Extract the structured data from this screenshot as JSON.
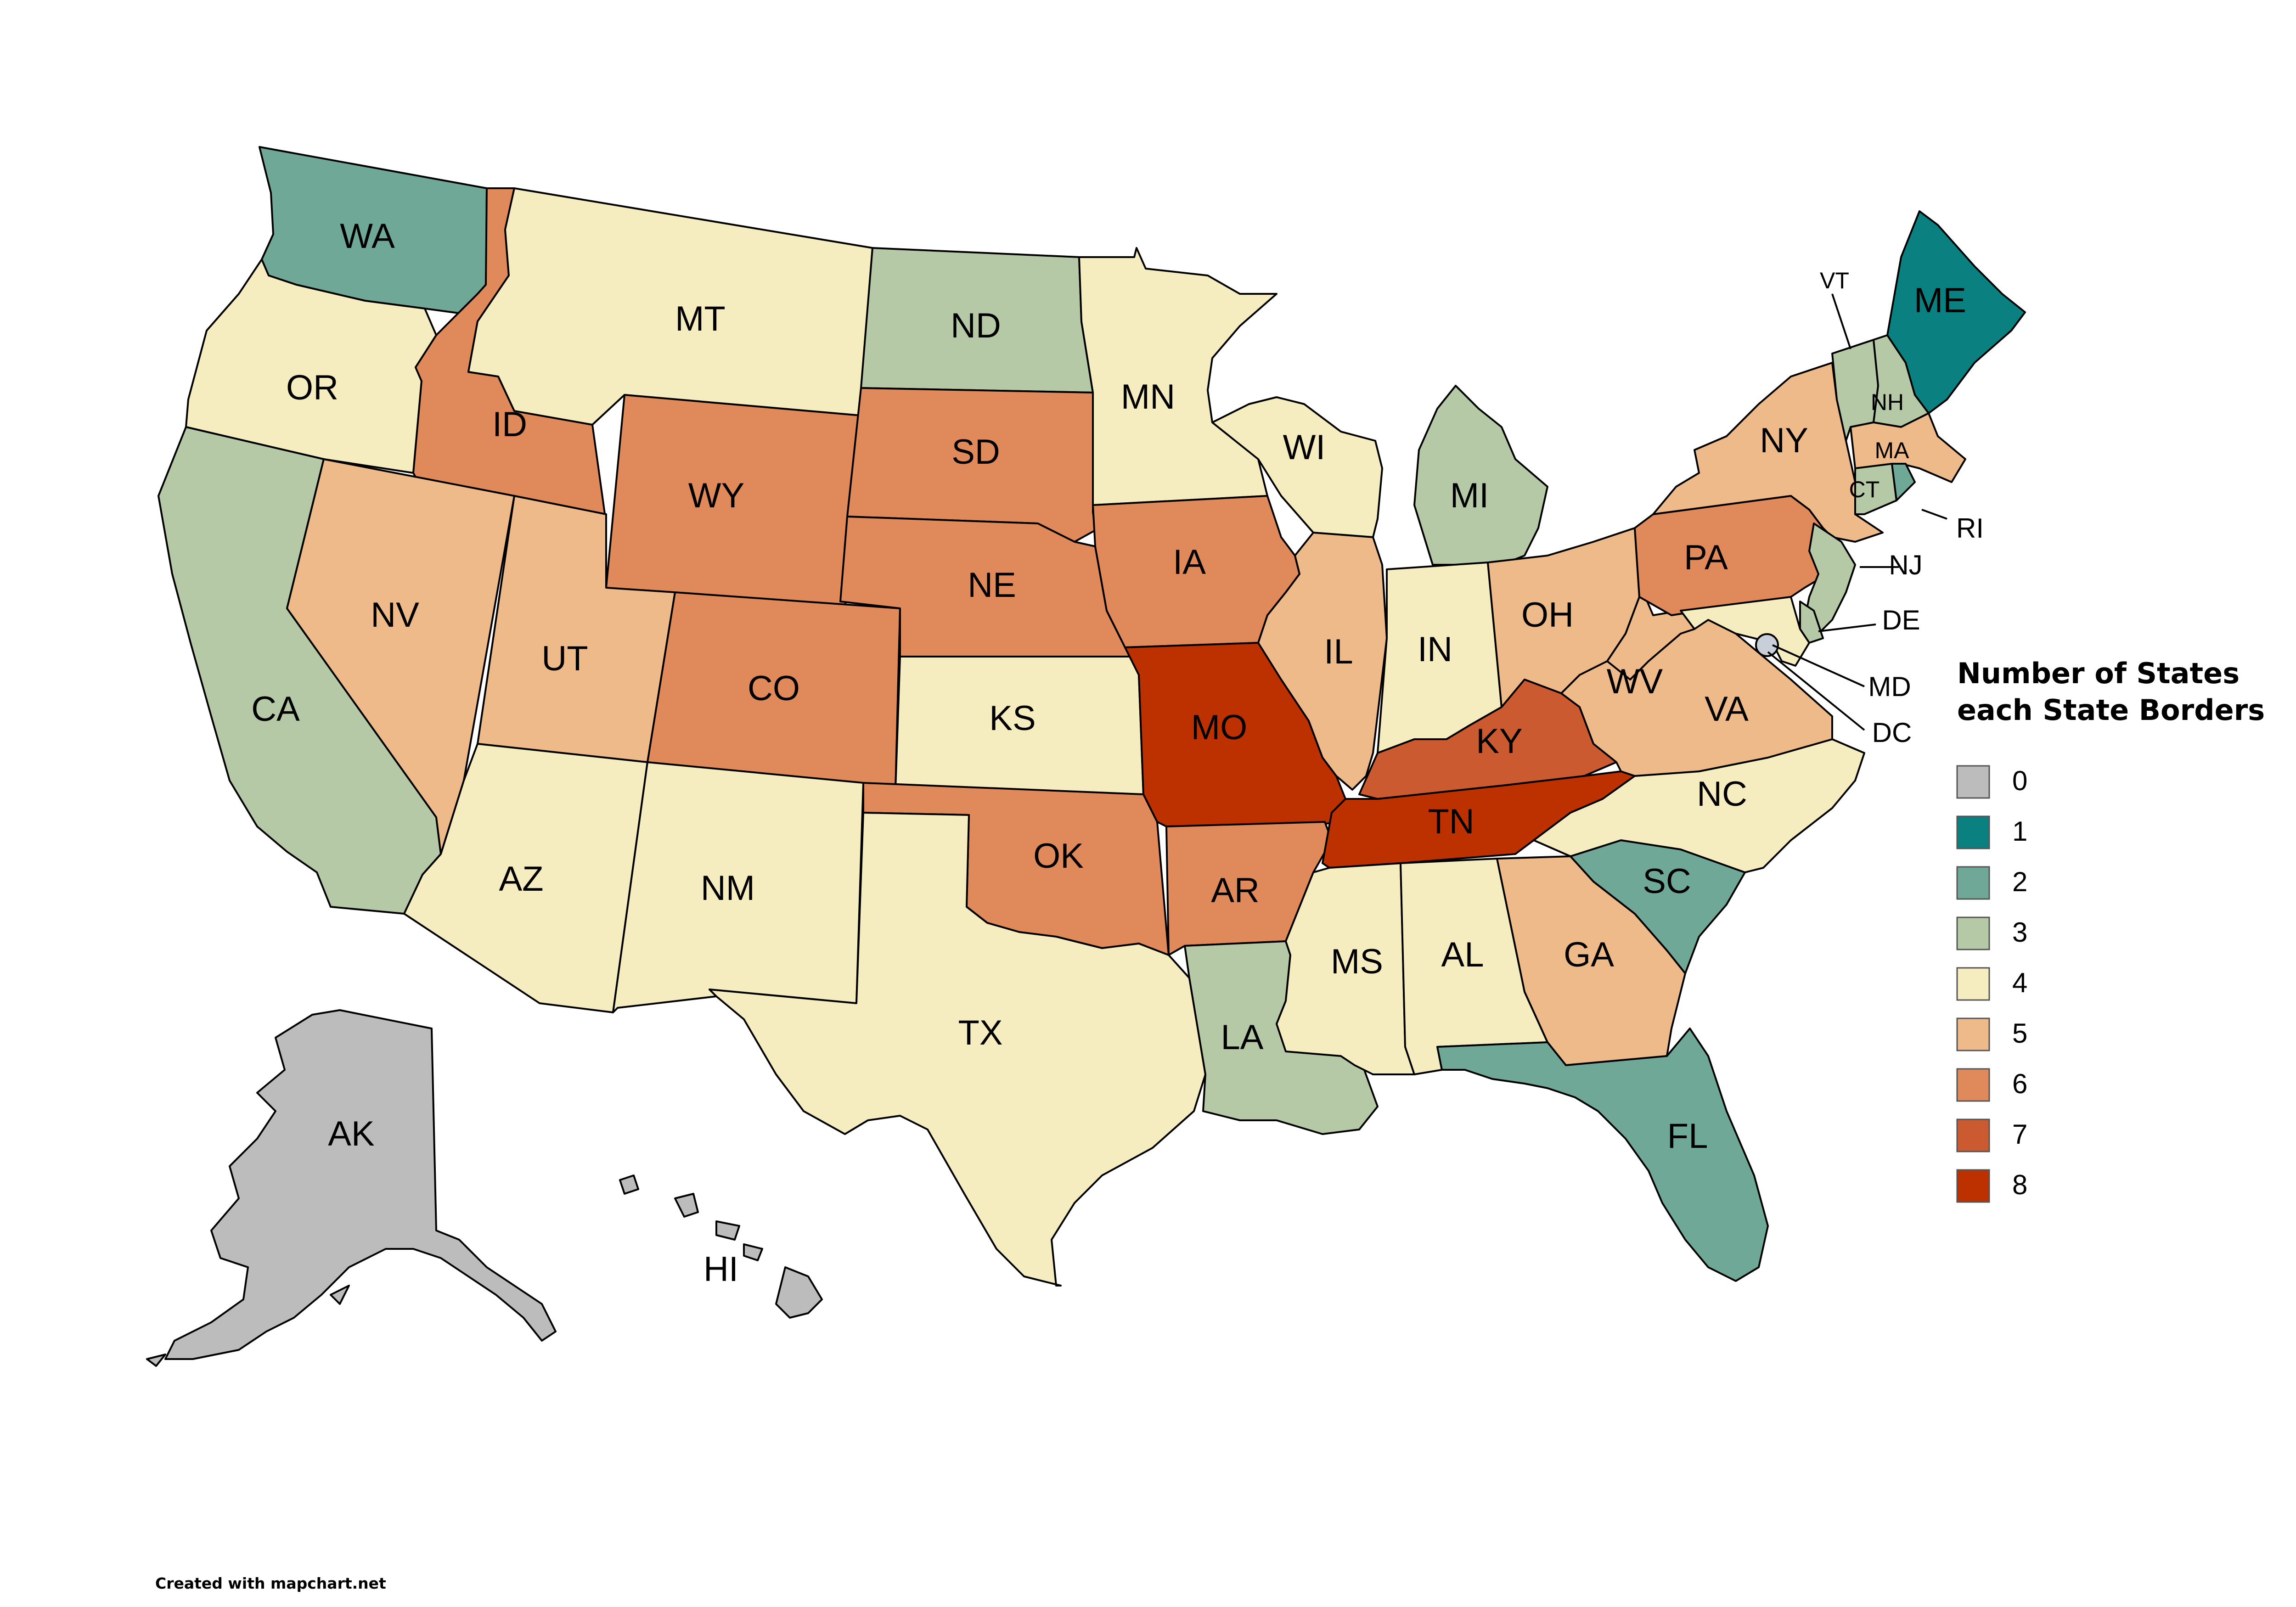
{
  "legend": {
    "title_line1": "Number of States",
    "title_line2": "each State Borders",
    "items": [
      {
        "label": "0",
        "color": "#bcbcbc"
      },
      {
        "label": "1",
        "color": "#0b8080"
      },
      {
        "label": "2",
        "color": "#70a898"
      },
      {
        "label": "3",
        "color": "#b5c9a6"
      },
      {
        "label": "4",
        "color": "#f5edbf"
      },
      {
        "label": "5",
        "color": "#eeba8a"
      },
      {
        "label": "6",
        "color": "#e0895a"
      },
      {
        "label": "7",
        "color": "#cc5a30"
      },
      {
        "label": "8",
        "color": "#bd3000"
      }
    ]
  },
  "credit": "Created with mapchart.net",
  "states": [
    {
      "abbr": "WA",
      "value": 2
    },
    {
      "abbr": "OR",
      "value": 4
    },
    {
      "abbr": "CA",
      "value": 3
    },
    {
      "abbr": "ID",
      "value": 6
    },
    {
      "abbr": "NV",
      "value": 5
    },
    {
      "abbr": "MT",
      "value": 4
    },
    {
      "abbr": "WY",
      "value": 6
    },
    {
      "abbr": "UT",
      "value": 5
    },
    {
      "abbr": "AZ",
      "value": 4
    },
    {
      "abbr": "CO",
      "value": 6
    },
    {
      "abbr": "NM",
      "value": 4
    },
    {
      "abbr": "ND",
      "value": 3
    },
    {
      "abbr": "SD",
      "value": 6
    },
    {
      "abbr": "NE",
      "value": 6
    },
    {
      "abbr": "KS",
      "value": 4
    },
    {
      "abbr": "OK",
      "value": 6
    },
    {
      "abbr": "TX",
      "value": 4
    },
    {
      "abbr": "MN",
      "value": 4
    },
    {
      "abbr": "IA",
      "value": 6
    },
    {
      "abbr": "MO",
      "value": 8
    },
    {
      "abbr": "AR",
      "value": 6
    },
    {
      "abbr": "LA",
      "value": 3
    },
    {
      "abbr": "WI",
      "value": 4
    },
    {
      "abbr": "IL",
      "value": 5
    },
    {
      "abbr": "MI",
      "value": 3
    },
    {
      "abbr": "IN",
      "value": 4
    },
    {
      "abbr": "OH",
      "value": 5
    },
    {
      "abbr": "KY",
      "value": 7
    },
    {
      "abbr": "TN",
      "value": 8
    },
    {
      "abbr": "MS",
      "value": 4
    },
    {
      "abbr": "AL",
      "value": 4
    },
    {
      "abbr": "GA",
      "value": 5
    },
    {
      "abbr": "FL",
      "value": 2
    },
    {
      "abbr": "SC",
      "value": 2
    },
    {
      "abbr": "NC",
      "value": 4
    },
    {
      "abbr": "VA",
      "value": 5
    },
    {
      "abbr": "WV",
      "value": 5
    },
    {
      "abbr": "PA",
      "value": 6
    },
    {
      "abbr": "NY",
      "value": 5
    },
    {
      "abbr": "VT",
      "value": 3
    },
    {
      "abbr": "NH",
      "value": 3
    },
    {
      "abbr": "ME",
      "value": 1
    },
    {
      "abbr": "MA",
      "value": 5
    },
    {
      "abbr": "CT",
      "value": 3
    },
    {
      "abbr": "RI",
      "value": 2
    },
    {
      "abbr": "NJ",
      "value": 3
    },
    {
      "abbr": "DE",
      "value": 3
    },
    {
      "abbr": "MD",
      "value": 4
    },
    {
      "abbr": "DC",
      "value": 2
    },
    {
      "abbr": "AK",
      "value": 0
    },
    {
      "abbr": "HI",
      "value": 0
    }
  ]
}
